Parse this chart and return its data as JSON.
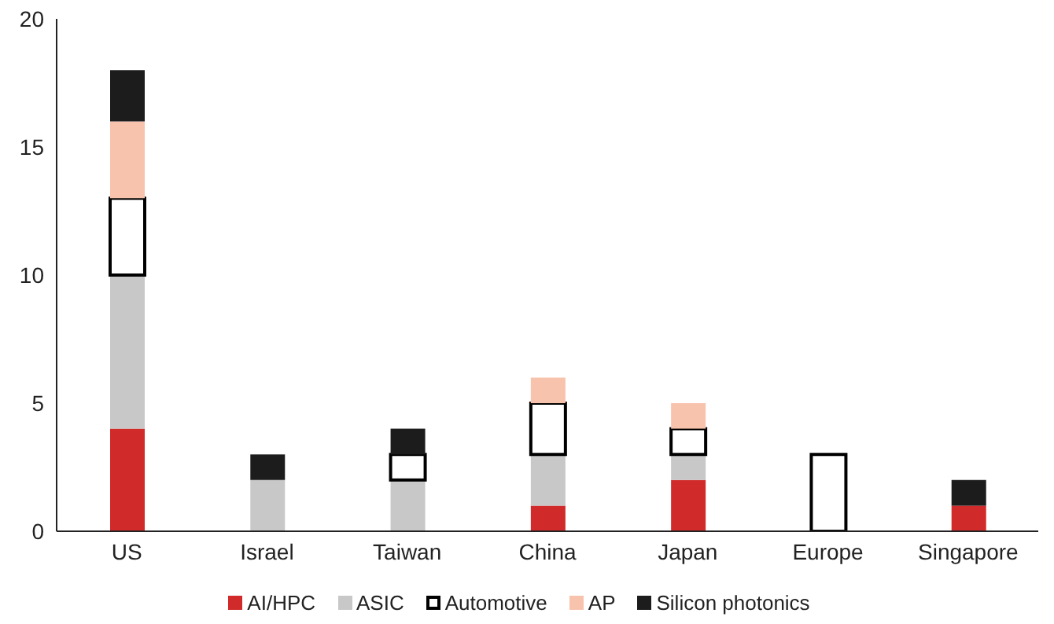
{
  "chart_data": {
    "type": "bar",
    "stacked": true,
    "categories": [
      "US",
      "Israel",
      "Taiwan",
      "China",
      "Japan",
      "Europe",
      "Singapore"
    ],
    "series": [
      {
        "name": "AI/HPC",
        "color": "#d12a2a",
        "values": [
          4,
          0,
          0,
          1,
          2,
          0,
          1
        ]
      },
      {
        "name": "ASIC",
        "color": "#c8c8c8",
        "values": [
          6,
          2,
          2,
          2,
          1,
          0,
          0
        ]
      },
      {
        "name": "Automotive",
        "color": "#ffffff",
        "values": [
          3,
          0,
          1,
          2,
          1,
          3,
          0
        ]
      },
      {
        "name": "AP",
        "color": "#f8c3ad",
        "values": [
          3,
          0,
          0,
          1,
          1,
          0,
          0
        ]
      },
      {
        "name": "Silicon photonics",
        "color": "#1c1c1c",
        "values": [
          2,
          1,
          1,
          0,
          0,
          0,
          1
        ]
      }
    ],
    "ylim": [
      0,
      20
    ],
    "yticks": [
      0,
      5,
      10,
      15,
      20
    ],
    "grid": false,
    "legend": "bottom"
  }
}
